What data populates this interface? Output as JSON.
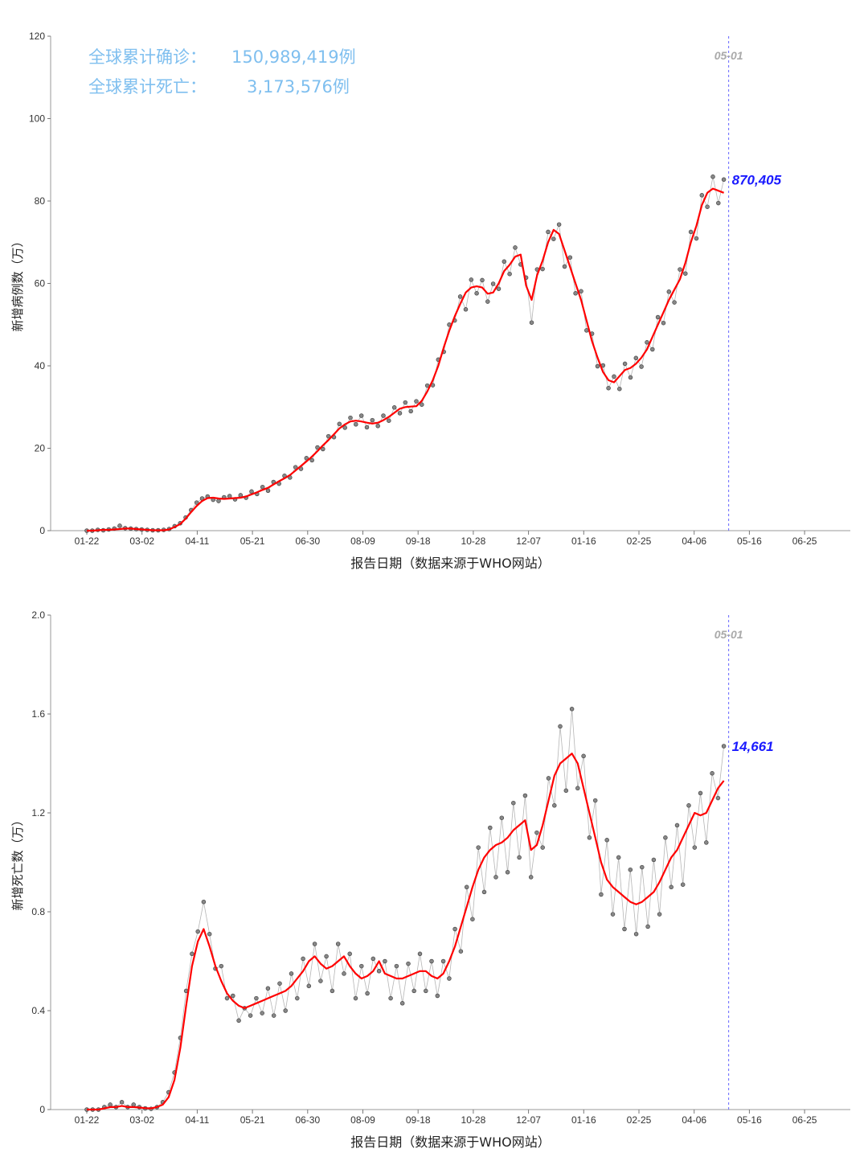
{
  "summary": {
    "confirmed_label": "全球累计确诊：",
    "confirmed_value": "150,989,419例",
    "deaths_label": "全球累计死亡：",
    "deaths_value": "3,173,576例"
  },
  "colors": {
    "points": "#555555",
    "trend": "#ff0000",
    "vline": "#6666ff",
    "label": "#1a1aff"
  },
  "chart_data": [
    {
      "type": "line",
      "xlabel": "报告日期（数据来源于WHO网站）",
      "ylabel": "新增病例数（万）",
      "ylim": [
        0,
        120
      ],
      "yticks": [
        "0",
        "20",
        "40",
        "60",
        "80",
        "100",
        "120"
      ],
      "xticks": [
        "01-22",
        "03-02",
        "04-11",
        "05-21",
        "06-30",
        "08-09",
        "09-18",
        "10-28",
        "12-07",
        "01-16",
        "02-25",
        "04-06",
        "05-16",
        "06-25"
      ],
      "marker_label": "05-01",
      "end_label": "870,405",
      "series": [
        {
          "values": [
            0,
            0,
            0.1,
            0.2,
            0.2,
            0.3,
            0.4,
            0.5,
            0.5,
            0.4,
            0.3,
            0.2,
            0.1,
            0.1,
            0.1,
            0.3,
            0.9,
            1.6,
            2.9,
            4.5,
            6.0,
            7.2,
            7.9,
            8.0,
            7.8,
            7.7,
            7.8,
            7.9,
            8.0,
            8.3,
            8.8,
            9.3,
            9.9,
            10.4,
            11.2,
            12.0,
            12.7,
            13.5,
            14.6,
            15.7,
            16.8,
            18.0,
            19.3,
            20.7,
            22.0,
            23.4,
            24.8,
            25.8,
            26.5,
            26.7,
            26.5,
            26.2,
            26.0,
            26.2,
            26.8,
            27.6,
            28.6,
            29.6,
            30.0,
            30.1,
            30.2,
            31.5,
            33.8,
            36.5,
            40.0,
            44.5,
            48.5,
            52.0,
            55.0,
            57.8,
            59.0,
            59.3,
            59.0,
            57.5,
            57.8,
            60.0,
            63.0,
            64.5,
            66.5,
            67.0,
            59.5,
            56.0,
            62.0,
            65.5,
            70.0,
            73.0,
            72.0,
            68.0,
            64.0,
            60.0,
            56.0,
            51.0,
            46.0,
            42.0,
            38.5,
            36.5,
            36.0,
            37.5,
            39.0,
            39.5,
            40.5,
            42.0,
            44.0,
            47.0,
            50.0,
            53.0,
            56.0,
            58.5,
            61.0,
            65.0,
            70.0,
            74.0,
            79.0,
            82.0,
            83.0,
            82.5,
            82.0
          ]
        },
        {
          "values": [
            0,
            0,
            0.2,
            0.1,
            0.3,
            0.5,
            1.2,
            0.6,
            0.5,
            0.4,
            0.3,
            0.2,
            0.1,
            0.1,
            0.2,
            0.4,
            1.1,
            1.8,
            3.2,
            5.0,
            6.8,
            7.8,
            8.3,
            7.5,
            7.2,
            8.1,
            8.4,
            7.6,
            8.6,
            8.0,
            9.5,
            8.9,
            10.6,
            9.7,
            11.8,
            11.4,
            13.3,
            12.9,
            15.4,
            15.0,
            17.6,
            17.1,
            20.2,
            19.8,
            22.9,
            22.7,
            25.9,
            25.0,
            27.4,
            25.8,
            27.9,
            25.1,
            26.8,
            25.4,
            27.9,
            26.7,
            29.9,
            28.5,
            31.1,
            29.0,
            31.4,
            30.6,
            35.2,
            35.3,
            41.5,
            43.4,
            50.0,
            51.0,
            56.8,
            53.7,
            60.9,
            57.6,
            60.8,
            55.6,
            59.9,
            58.7,
            65.3,
            62.3,
            68.7,
            64.6,
            61.4,
            50.5,
            63.4,
            63.5,
            72.5,
            70.8,
            74.3,
            64.1,
            66.3,
            57.6,
            58.1,
            48.6,
            47.8,
            39.9,
            40.1,
            34.6,
            37.4,
            34.4,
            40.5,
            37.2,
            41.9,
            39.8,
            45.7,
            44.0,
            51.8,
            50.4,
            58.0,
            55.4,
            63.4,
            62.4,
            72.5,
            70.9,
            81.4,
            78.6,
            85.9,
            79.5,
            85.2
          ]
        }
      ]
    },
    {
      "type": "line",
      "xlabel": "报告日期（数据来源于WHO网站）",
      "ylabel": "新增死亡数（万）",
      "ylim": [
        0,
        2.0
      ],
      "yticks": [
        "0",
        "0.4",
        "0.8",
        "1.2",
        "1.6",
        "2.0"
      ],
      "xticks": [
        "01-22",
        "03-02",
        "04-11",
        "05-21",
        "06-30",
        "08-09",
        "09-18",
        "10-28",
        "12-07",
        "01-16",
        "02-25",
        "04-06",
        "05-16",
        "06-25"
      ],
      "marker_label": "05-01",
      "end_label": "14,661",
      "series": [
        {
          "values": [
            0,
            0,
            0,
            0.005,
            0.01,
            0.01,
            0.015,
            0.01,
            0.01,
            0.008,
            0.006,
            0.005,
            0.01,
            0.02,
            0.05,
            0.12,
            0.25,
            0.42,
            0.58,
            0.68,
            0.73,
            0.66,
            0.58,
            0.52,
            0.47,
            0.44,
            0.42,
            0.41,
            0.42,
            0.43,
            0.44,
            0.45,
            0.46,
            0.47,
            0.48,
            0.5,
            0.53,
            0.56,
            0.6,
            0.62,
            0.59,
            0.57,
            0.58,
            0.6,
            0.62,
            0.58,
            0.55,
            0.53,
            0.54,
            0.56,
            0.6,
            0.55,
            0.54,
            0.53,
            0.53,
            0.54,
            0.55,
            0.56,
            0.56,
            0.54,
            0.53,
            0.55,
            0.6,
            0.66,
            0.74,
            0.82,
            0.9,
            0.97,
            1.02,
            1.05,
            1.07,
            1.08,
            1.1,
            1.13,
            1.15,
            1.17,
            1.05,
            1.07,
            1.15,
            1.25,
            1.35,
            1.4,
            1.42,
            1.44,
            1.4,
            1.3,
            1.2,
            1.1,
            1.0,
            0.93,
            0.9,
            0.88,
            0.86,
            0.84,
            0.83,
            0.84,
            0.86,
            0.88,
            0.92,
            0.97,
            1.02,
            1.05,
            1.1,
            1.15,
            1.2,
            1.19,
            1.2,
            1.25,
            1.3,
            1.33
          ]
        },
        {
          "values": [
            0,
            0,
            0,
            0.01,
            0.02,
            0.01,
            0.03,
            0.01,
            0.02,
            0.01,
            0.005,
            0.003,
            0.01,
            0.03,
            0.07,
            0.15,
            0.29,
            0.48,
            0.63,
            0.72,
            0.84,
            0.71,
            0.57,
            0.58,
            0.45,
            0.46,
            0.36,
            0.41,
            0.38,
            0.45,
            0.39,
            0.49,
            0.38,
            0.51,
            0.4,
            0.55,
            0.45,
            0.61,
            0.5,
            0.67,
            0.52,
            0.62,
            0.48,
            0.67,
            0.55,
            0.63,
            0.45,
            0.58,
            0.47,
            0.61,
            0.56,
            0.6,
            0.45,
            0.58,
            0.43,
            0.59,
            0.48,
            0.63,
            0.48,
            0.6,
            0.46,
            0.6,
            0.53,
            0.73,
            0.64,
            0.9,
            0.77,
            1.06,
            0.88,
            1.14,
            0.94,
            1.18,
            0.96,
            1.24,
            1.02,
            1.27,
            0.94,
            1.12,
            1.06,
            1.34,
            1.23,
            1.55,
            1.29,
            1.62,
            1.3,
            1.43,
            1.1,
            1.25,
            0.87,
            1.09,
            0.79,
            1.02,
            0.73,
            0.97,
            0.71,
            0.98,
            0.74,
            1.01,
            0.79,
            1.1,
            0.9,
            1.15,
            0.91,
            1.23,
            1.06,
            1.28,
            1.08,
            1.36,
            1.26,
            1.47
          ]
        }
      ]
    }
  ]
}
